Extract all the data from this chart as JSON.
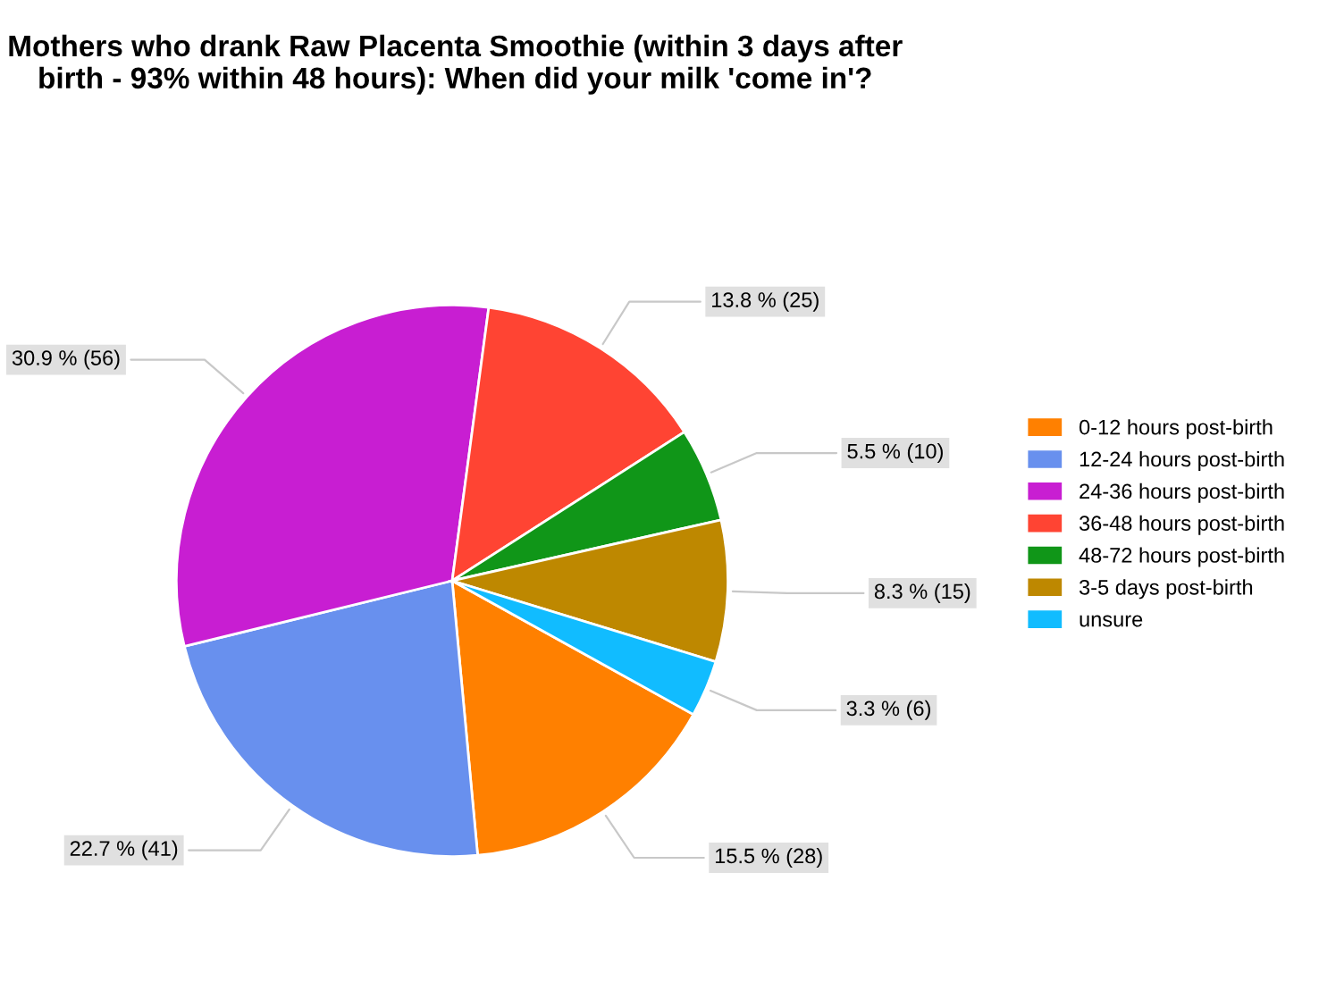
{
  "chart_data": {
    "type": "pie",
    "title": "Mothers who drank Raw Placenta Smoothie (within 3 days after\nbirth - 93% within 48 hours): When did your milk 'come in'?",
    "categories": [
      "0-12 hours post-birth",
      "12-24 hours post-birth",
      "24-36 hours post-birth",
      "36-48 hours post-birth",
      "48-72 hours post-birth",
      "3-5 days post-birth",
      "unsure"
    ],
    "values": [
      28,
      41,
      56,
      25,
      10,
      15,
      6
    ],
    "value_labels": [
      "15.5 % (28)",
      "22.7 % (41)",
      "30.9 % (56)",
      "13.8 % (25)",
      "5.5 % (10)",
      "8.3 % (15)",
      "3.3 % (6)"
    ],
    "colors": [
      "#ff8000",
      "#6890ee",
      "#c81ed2",
      "#ff4433",
      "#109618",
      "#be8800",
      "#11bcff"
    ],
    "legend": "right"
  }
}
